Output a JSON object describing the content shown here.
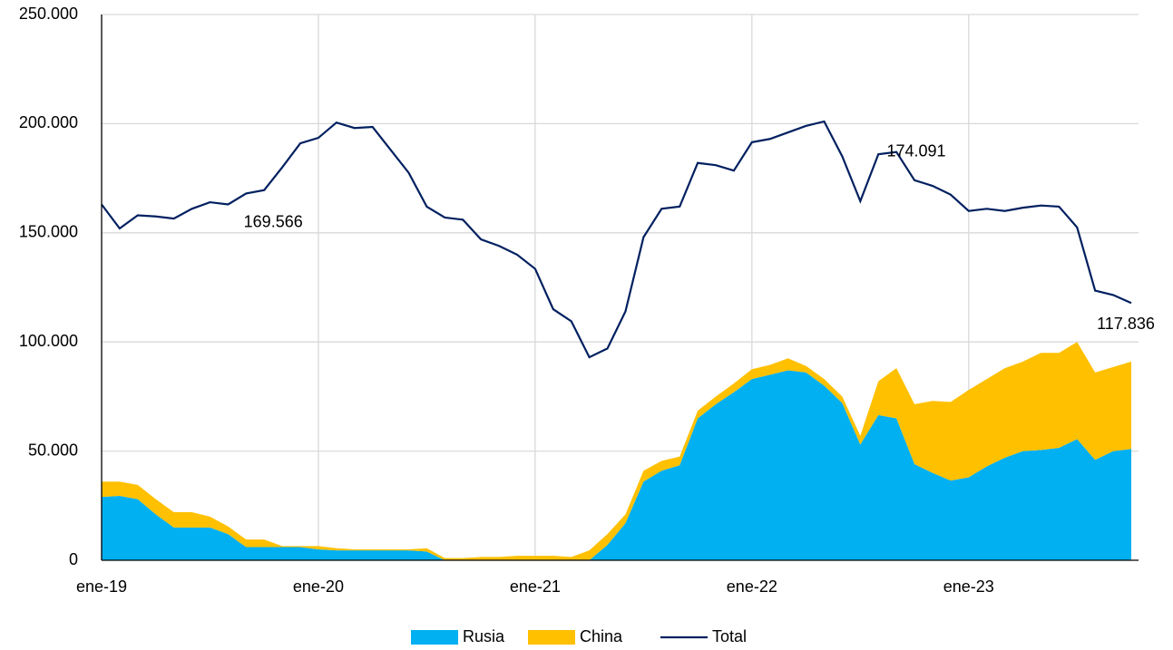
{
  "chart_data": {
    "type": "area",
    "stacked": true,
    "grid": true,
    "legend": "bottom",
    "categories": [
      "ene-19",
      null,
      null,
      null,
      null,
      null,
      null,
      null,
      null,
      null,
      null,
      null,
      "ene-20",
      null,
      null,
      null,
      null,
      null,
      null,
      null,
      null,
      null,
      null,
      null,
      "ene-21",
      null,
      null,
      null,
      null,
      null,
      null,
      null,
      null,
      null,
      null,
      null,
      "ene-22",
      null,
      null,
      null,
      null,
      null,
      null,
      null,
      null,
      null,
      null,
      null,
      "ene-23",
      null,
      null,
      null,
      null,
      null,
      null,
      null,
      null,
      null
    ],
    "ylim": [
      0,
      250000
    ],
    "yticks": [
      0,
      {
        "value": 50000,
        "label": "50.000"
      },
      {
        "value": 100000,
        "label": "100.000"
      },
      {
        "value": 150000,
        "label": "150.000"
      },
      {
        "value": 200000,
        "label": "200.000"
      },
      {
        "value": 250000,
        "label": "250.000"
      }
    ],
    "series": [
      {
        "name": "Rusia",
        "type": "area",
        "color": "#00b0f0",
        "values": [
          29000,
          29500,
          28000,
          21000,
          15000,
          15000,
          15000,
          12000,
          6000,
          6000,
          6000,
          6000,
          5000,
          4500,
          4500,
          4500,
          4500,
          4500,
          4000,
          0,
          0,
          0,
          0,
          0,
          0,
          0,
          0,
          0,
          7000,
          17000,
          36000,
          41000,
          43500,
          65000,
          71500,
          77000,
          83000,
          85000,
          87000,
          86000,
          80000,
          72000,
          53000,
          66500,
          65000,
          44000,
          40000,
          36500,
          38000,
          43000,
          47000,
          50000,
          50500,
          51500,
          55500,
          46000,
          50000,
          51000
        ]
      },
      {
        "name": "China",
        "type": "area",
        "color": "#ffc000",
        "values": [
          7000,
          6500,
          6500,
          7000,
          7000,
          7000,
          5000,
          3500,
          3500,
          3500,
          500,
          500,
          1500,
          1000,
          500,
          500,
          500,
          500,
          1500,
          1000,
          1000,
          1500,
          1500,
          2000,
          2000,
          2000,
          1500,
          4500,
          5000,
          4000,
          5000,
          4500,
          4000,
          3500,
          3500,
          4000,
          4500,
          4500,
          5500,
          3000,
          3000,
          3000,
          4000,
          15500,
          23000,
          27500,
          33000,
          36000,
          40000,
          40000,
          41000,
          41000,
          44500,
          43500,
          44500,
          40000,
          38500,
          40000
        ]
      },
      {
        "name": "Total",
        "type": "line",
        "color": "#002060",
        "values": [
          163000,
          152000,
          158000,
          157500,
          156500,
          161000,
          164000,
          163000,
          168000,
          169566,
          180000,
          191000,
          193500,
          200500,
          198000,
          198500,
          188000,
          177500,
          162000,
          157000,
          156000,
          147000,
          144000,
          140000,
          133500,
          115000,
          109500,
          93000,
          97000,
          114000,
          148000,
          161000,
          162000,
          182000,
          181000,
          178500,
          191500,
          193000,
          196000,
          199000,
          201000,
          185000,
          164500,
          186000,
          187000,
          174091,
          171500,
          167500,
          160000,
          161000,
          160000,
          161500,
          162500,
          162000,
          152500,
          123500,
          121500,
          117836
        ],
        "value_labels": [
          null,
          null,
          null,
          null,
          null,
          null,
          null,
          null,
          null,
          "169.566",
          null,
          null,
          null,
          null,
          null,
          null,
          null,
          null,
          null,
          null,
          null,
          null,
          null,
          null,
          null,
          null,
          null,
          null,
          null,
          null,
          null,
          null,
          null,
          null,
          null,
          null,
          null,
          null,
          null,
          null,
          null,
          null,
          null,
          null,
          null,
          "174.091",
          null,
          null,
          null,
          null,
          null,
          null,
          null,
          null,
          null,
          null,
          null,
          "117.836"
        ]
      }
    ]
  }
}
